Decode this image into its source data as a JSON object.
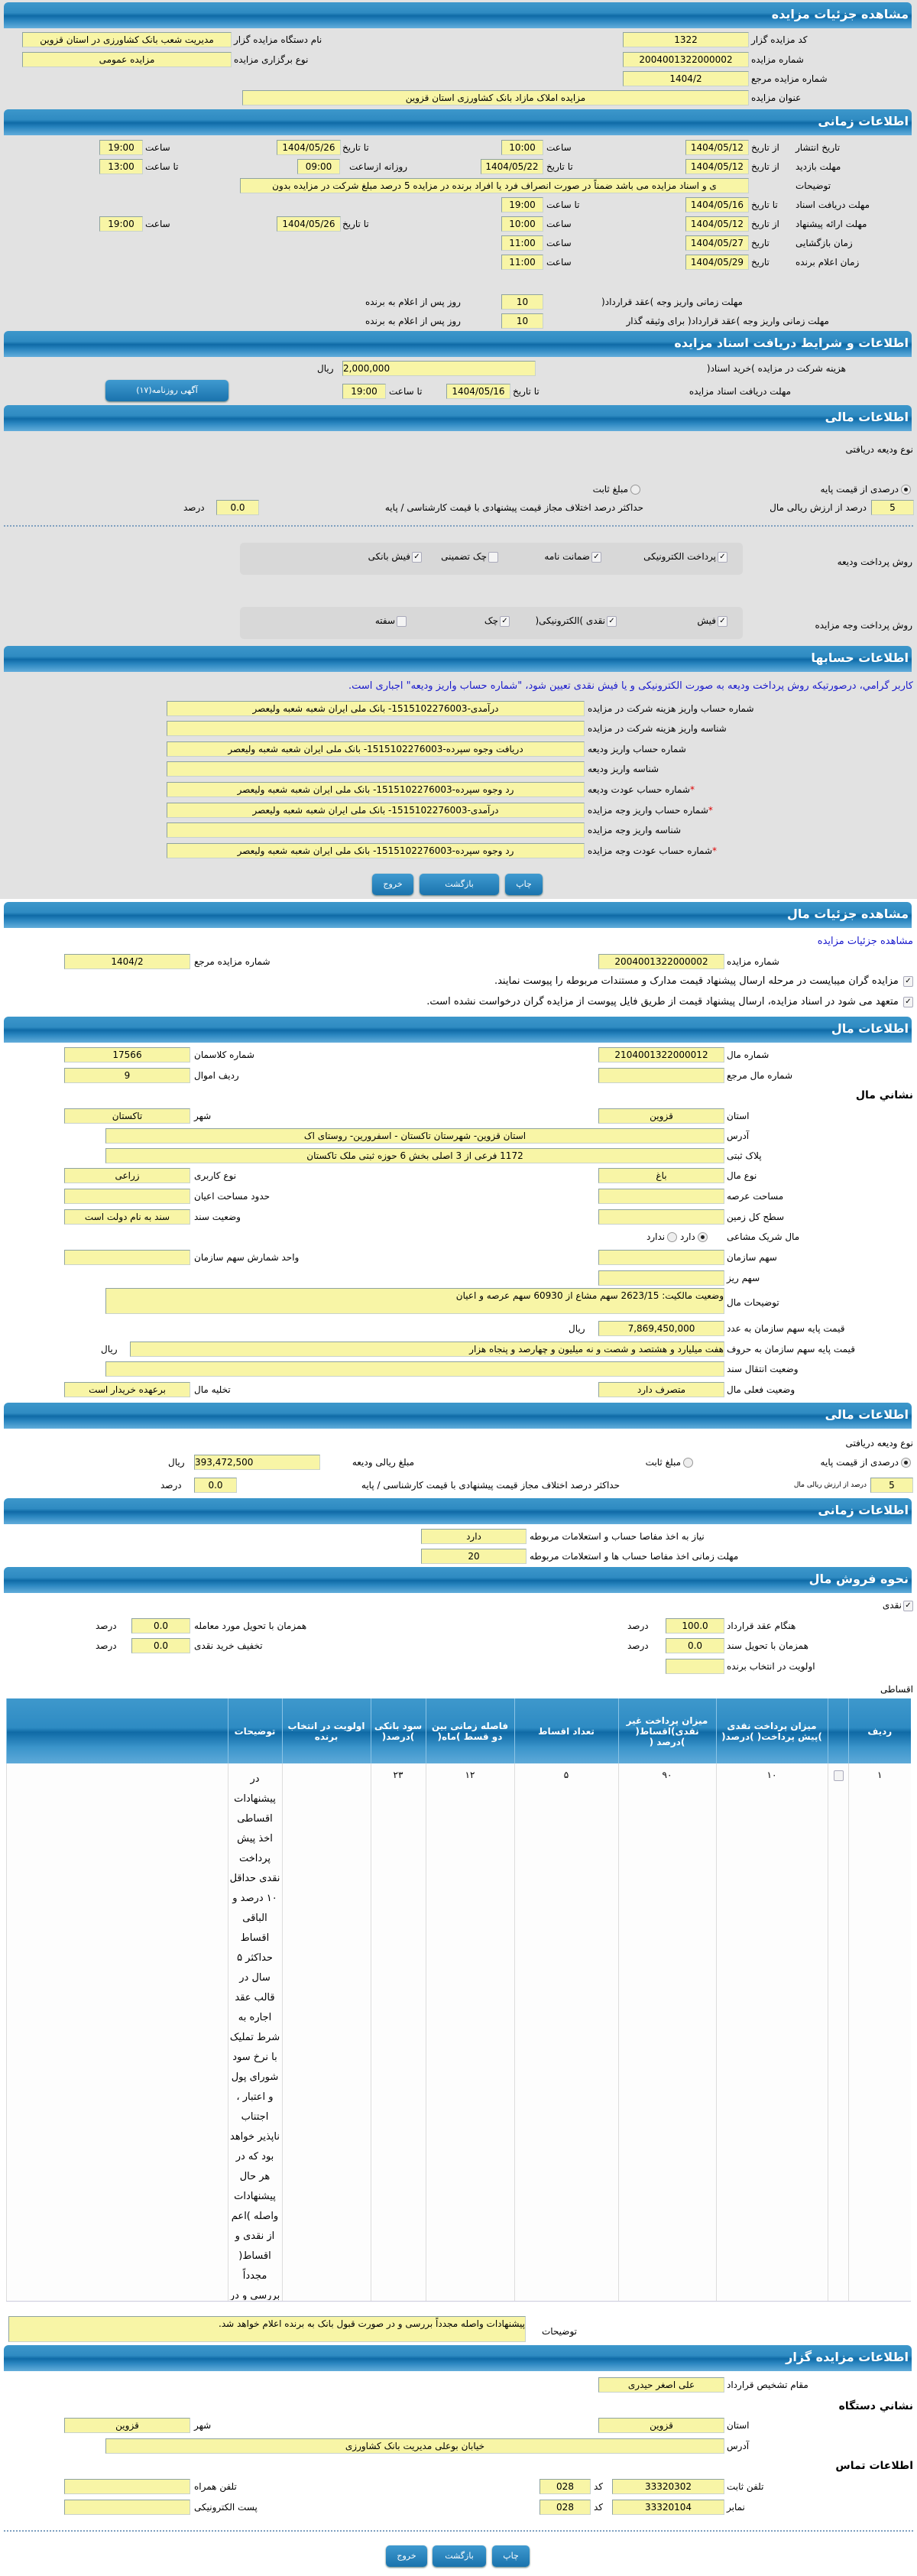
{
  "auction": {
    "title": "مشاهده جزئیات مزایده",
    "code_label": "کد مزایده گزار",
    "code": "1322",
    "org_label": "نام دستگاه مزایده گزار",
    "org": "مدیریت شعب بانک کشاورزی در استان قزوین",
    "number_label": "شماره مزایده",
    "number": "2004001322000002",
    "type_label": "نوع برگزاری مزایده",
    "type": "مزایده عمومی",
    "ref_label": "شماره مزایده مرجع",
    "ref": "1404/2",
    "name_label": "عنوان مزایده",
    "name": "مزایده املاک مازاد بانک کشاورزی استان قزوین"
  },
  "timing": {
    "title": "اطلاعات زمانی",
    "from_date": "از تاریخ",
    "to_date": "تا تاریخ",
    "date": "تاریخ",
    "hour": "ساعت",
    "to_hour": "تا ساعت",
    "daily_from": "روزانه ازساعت",
    "publish_label": "تاریخ انتشار",
    "publish_from": "1404/05/12",
    "publish_from_time": "10:00",
    "publish_to": "1404/05/26",
    "publish_to_time": "19:00",
    "visit_label": "مهلت بازدید",
    "visit_from": "1404/05/12",
    "visit_to": "1404/05/22",
    "visit_daily_from": "09:00",
    "visit_to_time": "13:00",
    "desc_label": "توضیحات",
    "desc": "ی و اسناد مزایده می باشد ضمناً در صورت انصراف فرد یا افراد برنده در مزایده 5 درصد مبلغ شرکت در مزایده بدون",
    "docs_label": "مهلت دریافت اسناد",
    "docs_to": "1404/05/16",
    "docs_to_time": "19:00",
    "offer_label": "مهلت ارائه پیشنهاد",
    "offer_from": "1404/05/12",
    "offer_from_time": "10:00",
    "offer_to": "1404/05/26",
    "offer_to_time": "19:00",
    "open_label": "زمان بازگشایی",
    "open_date": "1404/05/27",
    "open_time": "11:00",
    "winner_label": "زمان اعلام برنده",
    "winner_date": "1404/05/29",
    "winner_time": "11:00",
    "pay_deadline_label": "مهلت زمانی واریز وجه )عقد قرارداد(",
    "pay_deadline": "10",
    "pay_deadline_guarantor_label": "مهلت زمانی واریز وجه )عقد قرارداد( برای وثیقه گذار",
    "pay_deadline_guarantor": "10",
    "days_after": "روز پس از اعلام به برنده"
  },
  "docs": {
    "title": "اطلاعات و شرایط دریافت اسناد مزایده",
    "fee_label": "هزینه شرکت در مزایده )خرید اسناد(",
    "fee": "2,000,000",
    "rial": "ریال",
    "deadline_label": "مهلت دریافت اسناد مزایده",
    "to_date": "تا تاریخ",
    "date": "1404/05/16",
    "to_hour": "تا ساعت",
    "time": "19:00",
    "newspaper_button": "آگهی روزنامه(۱۷)"
  },
  "finance": {
    "title": "اطلاعات مالی",
    "deposit_type_label": "نوع ودیعه دریافتی",
    "percent_option": "درصدی از قیمت پایه",
    "percent_selected": true,
    "fixed_option": "مبلغ ثابت",
    "fixed_selected": false,
    "percent_value": "5",
    "percent_of_value_label": "درصد از ارزش ریالی مال",
    "max_diff_label": "حداکثر درصد اختلاف مجاز قیمت پیشنهادی با قیمت کارشناسی / پایه",
    "max_diff": "0.0",
    "percent": "درصد",
    "deposit_method_label": "روش پرداخت ودیعه",
    "deposit_methods": [
      {
        "label": "پرداخت الکترونیکی",
        "checked": true
      },
      {
        "label": "ضمانت نامه",
        "checked": true
      },
      {
        "label": "چک تضمینی",
        "checked": false
      },
      {
        "label": "فیش بانکی",
        "checked": true
      }
    ],
    "payment_method_label": "روش پرداخت وجه مزایده",
    "payment_methods": [
      {
        "label": "فیش",
        "checked": true
      },
      {
        "label": "نقدی )الکترونیکی(",
        "checked": true
      },
      {
        "label": "چک",
        "checked": true
      },
      {
        "label": "سفته",
        "checked": false
      }
    ]
  },
  "accounts": {
    "title": "اطلاعات حسابها",
    "notice": "کاربر گرامي، درصورتیکه روش پرداخت ودیعه به صورت الکترونیکی و یا فیش نقدی تعیین شود، \"شماره حساب واریز ودیعه\" اجباری است.",
    "rows": [
      {
        "label": "شماره حساب واریز هزینه شرکت در مزایده",
        "value": "درآمدی-1515102276003- بانک ملی ایران شعبه شعبه ولیعصر",
        "required": ""
      },
      {
        "label": "شناسه واریز هزینه شرکت در مزایده",
        "value": "",
        "required": ""
      },
      {
        "label": "شماره حساب واریز ودیعه",
        "value": "دریافت وجوه سپرده-1515102276003- بانک ملی ایران شعبه شعبه ولیعصر",
        "required": ""
      },
      {
        "label": "شناسه واریز ودیعه",
        "value": "",
        "required": ""
      },
      {
        "label": "شماره حساب عودت ودیعه",
        "value": "رد وجوه سپرده-1515102276003- بانک ملی ایران شعبه شعبه ولیعصر",
        "required": "*"
      },
      {
        "label": "شماره حساب واریز وجه مزایده",
        "value": "درآمدی-1515102276003- بانک ملی ایران شعبه شعبه ولیعصر",
        "required": "*"
      },
      {
        "label": "شناسه واریز وجه مزایده",
        "value": "",
        "required": ""
      },
      {
        "label": "شماره حساب عودت وجه مزایده",
        "value": "رد وجوه سپرده-1515102276003- بانک ملی ایران شعبه شعبه ولیعصر",
        "required": "*"
      }
    ]
  },
  "buttons": {
    "print": "چاپ",
    "back": "بازگشت",
    "exit": "خروج"
  },
  "item_view": {
    "title": "مشاهده جزئیات مال",
    "link": "مشاهده جزئیات مزایده",
    "number_label": "شماره مزایده",
    "number": "2004001322000002",
    "ref_label": "شماره مزایده مرجع",
    "ref": "1404/2",
    "check1": "مزایده گران میبایست در مرحله ارسال پیشنهاد قیمت مدارک و مستندات مربوطه را پیوست نمایند.",
    "check1_checked": true,
    "check2": "متعهد می شود در اسناد مزایده، ارسال پیشنهاد قیمت از طریق فایل پیوست از مزایده گران درخواست نشده است.",
    "check2_checked": true
  },
  "item": {
    "title": "اطلاعات مال",
    "number_label": "شماره مال",
    "number": "2104001322000012",
    "class_label": "شماره کلاسمان",
    "class": "17566",
    "ref_label": "شماره مال مرجع",
    "ref": "",
    "row_label": "ردیف اموال",
    "row": "9",
    "address_heading": "نشاني مال",
    "province_label": "استان",
    "province": "قزوین",
    "city_label": "شهر",
    "city": "تاکستان",
    "address_label": "آدرس",
    "address": "استان قزوین- شهرستان تاکستان - اسفرورین- روستای اک",
    "plate_label": "پلاک ثبتی",
    "plate": "1172 فرعی از 3 اصلی بخش 6 حوزه ثبتی ملک تاکستان",
    "kind_label": "نوع مال",
    "kind": "باغ",
    "usage_label": "نوع کاربری",
    "usage": "زراعی",
    "area_label": "مساحت عرصه",
    "area": "",
    "building_label": "حدود مساحت اعیان",
    "building": "",
    "land_label": "سطح کل زمین",
    "land": "",
    "deed_label": "وضعیت سند",
    "deed": "سند به نام دولت است",
    "shared_label": "مال شریک مشاعی",
    "shared_yes": "دارد",
    "shared_no": "ندارد",
    "shared": true,
    "share_label": "سهم سازمان",
    "share": "",
    "share_unit_label": "واحد شمارش سهم سازمان",
    "share_unit": "",
    "subshare_label": "سهم ریز",
    "subshare": "",
    "desc_label": "توضیحات مال",
    "desc": "وضعیت مالکیت: 2623/15 سهم مشاع از 60930 سهم عرصه و اعیان",
    "price_num_label": "قیمت پایه سهم سازمان به عدد",
    "price_num": "7,869,450,000",
    "price_words_label": "قیمت پایه سهم سازمان به حروف",
    "price_words": "هفت میلیارد و هشتصد و شصت و نه میلیون و چهارصد و پنجاه هزار",
    "rial": "ریال",
    "transfer_label": "وضعیت انتقال سند",
    "transfer": "",
    "status_label": "وضعیت فعلی مال",
    "status": "متصرف دارد",
    "evacuation_label": "تخلیه مال",
    "evacuation": "برعهده خریدار است"
  },
  "item_finance": {
    "title": "اطلاعات مالی",
    "deposit_type_label": "نوع ودیعه دریافتی",
    "percent_option": "درصدی از قیمت پایه",
    "percent_selected": true,
    "fixed_option": "مبلغ ثابت",
    "fixed_selected": false,
    "deposit_amount_label": "مبلغ ریالی ودیعه",
    "deposit_amount": "393,472,500",
    "rial": "ریال",
    "percent_value": "5",
    "percent_of_value_label": "درصد از ارزش ریالی مال",
    "max_diff_label": "حداکثر درصد اختلاف مجاز قیمت پیشنهادی با قیمت کارشناسی / پایه",
    "max_diff": "0.0",
    "percent": "درصد"
  },
  "item_timing": {
    "title": "اطلاعات زمانی",
    "clearance_label": "نیاز به اخذ مفاصا حساب و استعلامات مربوطه",
    "clearance": "دارد",
    "clearance_deadline_label": "مهلت زمانی اخذ مفاصا حساب ها و استعلامات مربوطه",
    "clearance_deadline": "20"
  },
  "sale": {
    "title": "نحوه فروش مال",
    "cash_label": "نقدی",
    "cash_checked": true,
    "at_contract_label": "هنگام عقد قرارداد",
    "at_contract": "100.0",
    "with_delivery_label": "همزمان با تحویل مورد معامله",
    "with_delivery": "0.0",
    "with_deed_label": "همزمان با تحویل سند",
    "with_deed": "0.0",
    "cash_discount_label": "تخفیف خرید نقدی",
    "cash_discount": "0.0",
    "priority_label": "اولویت در انتخاب برنده",
    "priority": "",
    "percent": "درصد",
    "installment_label": "اقساطی",
    "table": {
      "headers": [
        "ردیف",
        "",
        "میزان پرداخت نقدی )پیش پرداخت( )درصد(",
        "میزان پرداخت غیر نقدی)اقساط( )درصد (",
        "تعداد اقساط",
        "فاصله زمانی بین دو قسط )ماه(",
        "سود بانکی )درصد(",
        "اولویت در انتخاب برنده",
        "توضیحات",
        ""
      ],
      "rows": [
        {
          "index": "۱",
          "checked": false,
          "cash": "۱۰",
          "non_cash": "۹۰",
          "count": "۵",
          "interval": "۱۲",
          "interest": "۲۳",
          "priority": "",
          "desc": "در پیشنهادات اقساطی اخذ پیش پرداخت نقدی حداقل ۱۰ درصد و الباقی اقساط حداکثر ۵ سال در قالب عقد اجاره به شرط تملیک با نرخ سود شورای پول و اعتبار ، اجتناب ناپذیر خواهد بود که در هر حال پیشنهادات واصله )اعم از نقدی و اقساط( مجدداً بررسی و در صو"
        }
      ]
    },
    "notes_label": "توضیحات",
    "notes": "پیشنهادات واصله مجدداً بررسی و در صورت قبول بانک به برنده اعلام خواهد شد."
  },
  "auctioneer": {
    "title": "اطلاعات مزایده گزار",
    "authority_label": "مقام تشخیص قرارداد",
    "authority": "علی اصغر حیدری",
    "address_heading": "نشاني دستگاه",
    "province_label": "استان",
    "province": "قزوین",
    "city_label": "شهر",
    "city": "قزوین",
    "address_label": "آدرس",
    "address": "خیابان بوعلی مدیریت بانک کشاورزی",
    "contact_heading": "اطلاعات تماس",
    "phone_label": "تلفن ثابت",
    "phone": "33320302",
    "code_label": "کد",
    "phone_code": "028",
    "mobile_label": "تلفن همراه",
    "mobile": "",
    "fax_label": "نمابر",
    "fax": "33320104",
    "fax_code": "028",
    "email_label": "پست الکترونیکی",
    "email": ""
  }
}
